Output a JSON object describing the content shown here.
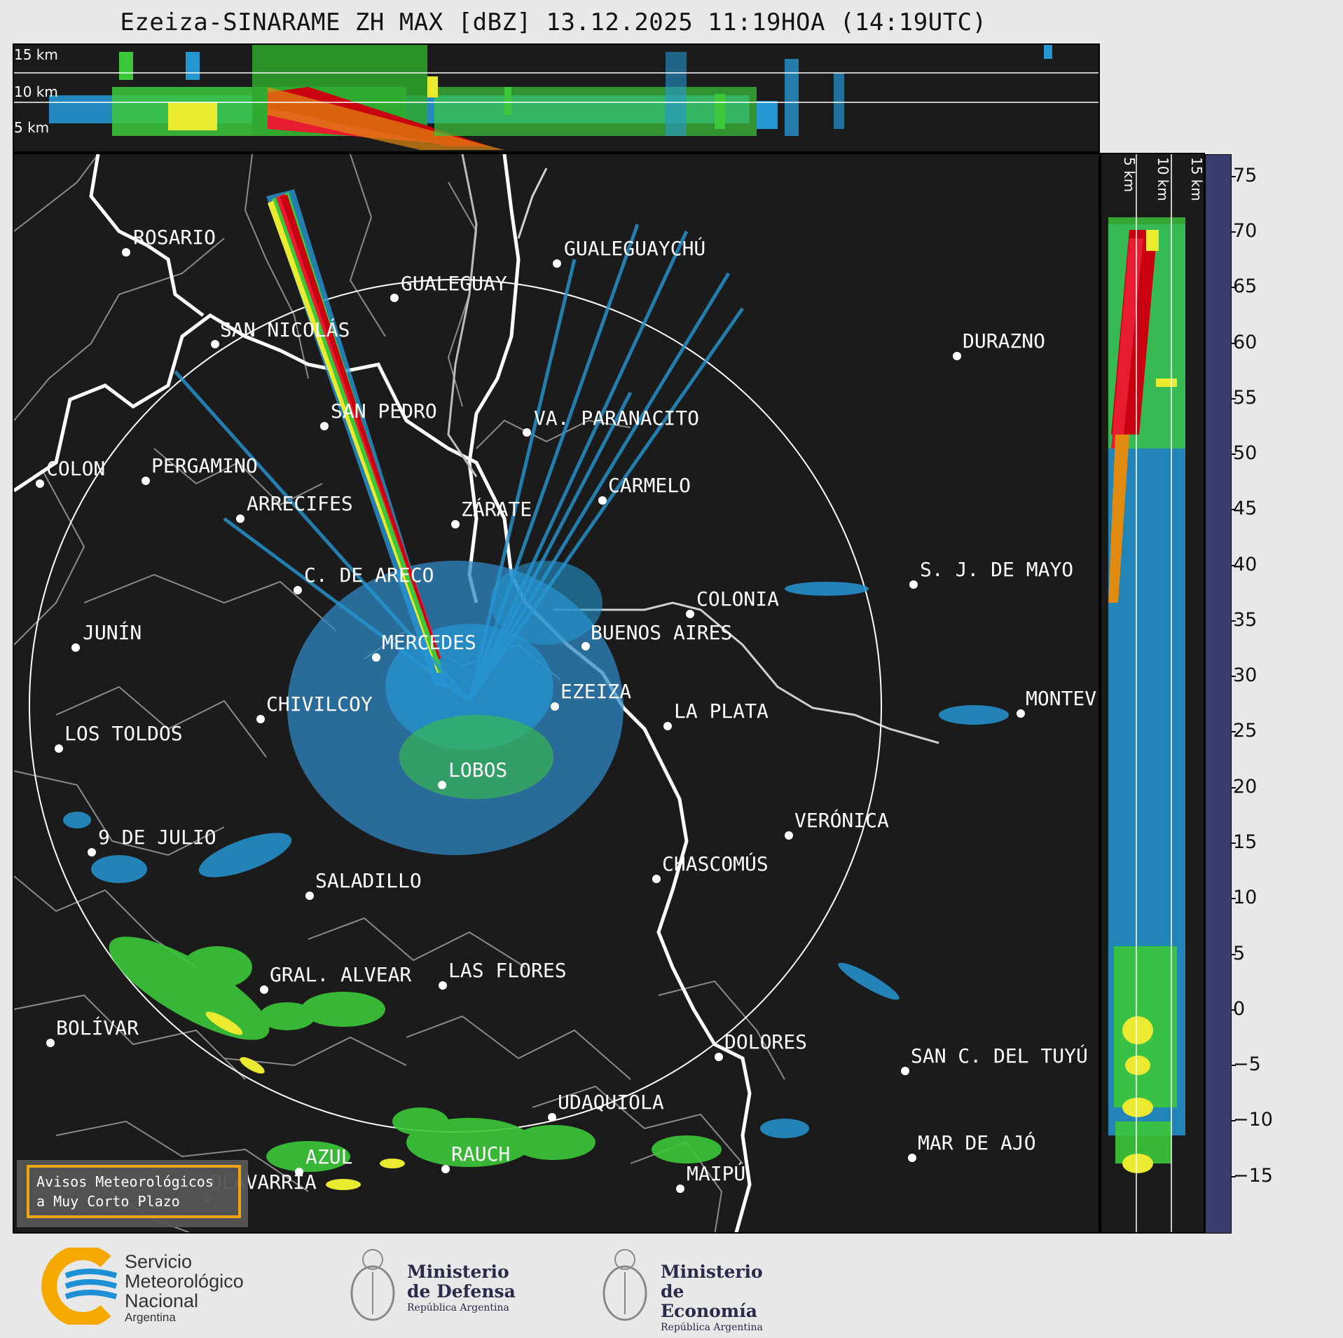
{
  "title": "Ezeiza-SINARAME ZH MAX [dBZ] 13.12.2025 11:19HOA (14:19UTC)",
  "top_panel": {
    "altitude_labels": [
      "15 km",
      "10 km",
      "5 km"
    ]
  },
  "side_panel": {
    "altitude_labels": [
      "5 km",
      "10 km",
      "15 km"
    ]
  },
  "colorbar": {
    "unit": "dBZ",
    "ticks": [
      "75",
      "70",
      "65",
      "60",
      "55",
      "50",
      "45",
      "40",
      "35",
      "30",
      "25",
      "20",
      "15",
      "10",
      "5",
      "0",
      "−5",
      "−10",
      "−15"
    ],
    "range": [
      -20,
      77
    ],
    "stops": [
      {
        "from": -20,
        "color": "#3a3e6e"
      },
      {
        "from": -15,
        "color": "#3d4a80"
      },
      {
        "from": -10,
        "color": "#3f5690"
      },
      {
        "from": -5,
        "color": "#3a6aa8"
      },
      {
        "from": 0,
        "color": "#3478b8"
      },
      {
        "from": 5,
        "color": "#2f88c6"
      },
      {
        "from": 10,
        "color": "#2596d2"
      },
      {
        "from": 15,
        "color": "#22a8dc"
      },
      {
        "from": 18,
        "color": "#4ee64a"
      },
      {
        "from": 21,
        "color": "#3cc83a"
      },
      {
        "from": 24,
        "color": "#2fa82e"
      },
      {
        "from": 27,
        "color": "#236f23"
      },
      {
        "from": 30,
        "color": "#eaea30"
      },
      {
        "from": 33,
        "color": "#d8d03a"
      },
      {
        "from": 37,
        "color": "#c8a82a"
      },
      {
        "from": 40,
        "color": "#e08a10"
      },
      {
        "from": 43,
        "color": "#e81c30"
      },
      {
        "from": 46,
        "color": "#c80010"
      },
      {
        "from": 49,
        "color": "#a00020"
      },
      {
        "from": 50,
        "color": "#c01060"
      },
      {
        "from": 53,
        "color": "#e020d0"
      },
      {
        "from": 56,
        "color": "#a010a0"
      },
      {
        "from": 59,
        "color": "#ffffff"
      },
      {
        "from": 61,
        "color": "#d8f2e8"
      },
      {
        "from": 65,
        "color": "#b0e8d0"
      },
      {
        "from": 70,
        "color": "#8fdcc0"
      }
    ]
  },
  "cities": [
    {
      "name": "ROSARIO"
    },
    {
      "name": "GUALEGUAYCHÚ"
    },
    {
      "name": "GUALEGUAY"
    },
    {
      "name": "SAN NICOLÁS"
    },
    {
      "name": "DURAZNO"
    },
    {
      "name": "SAN PEDRO"
    },
    {
      "name": "VA. PARANACITO"
    },
    {
      "name": "COLON"
    },
    {
      "name": "PERGAMINO"
    },
    {
      "name": "CARMELO"
    },
    {
      "name": "ARRECIFES"
    },
    {
      "name": "ZÁRATE"
    },
    {
      "name": "S. J. DE MAYO"
    },
    {
      "name": "C. DE ARECO"
    },
    {
      "name": "COLONIA"
    },
    {
      "name": "JUNÍN"
    },
    {
      "name": "BUENOS AIRES"
    },
    {
      "name": "MERCEDES"
    },
    {
      "name": "MONTEV"
    },
    {
      "name": "EZEIZA"
    },
    {
      "name": "CHIVILCOY"
    },
    {
      "name": "LA PLATA"
    },
    {
      "name": "LOS TOLDOS"
    },
    {
      "name": "LOBOS"
    },
    {
      "name": "VERÓNICA"
    },
    {
      "name": "9 DE JULIO"
    },
    {
      "name": "CHASCOMÚS"
    },
    {
      "name": "SALADILLO"
    },
    {
      "name": "GRAL. ALVEAR"
    },
    {
      "name": "LAS FLORES"
    },
    {
      "name": "BOLÍVAR"
    },
    {
      "name": "DOLORES"
    },
    {
      "name": "SAN C. DEL TUYÚ"
    },
    {
      "name": "UDAQUIOLA"
    },
    {
      "name": "MAR DE AJÓ"
    },
    {
      "name": "RAUCH"
    },
    {
      "name": "AZUL"
    },
    {
      "name": "MAIPÚ"
    },
    {
      "name": "OLAVARRÍA"
    }
  ],
  "warning_box": {
    "line1": "Avisos Meteorológicos",
    "line2": "a Muy Corto Plazo"
  },
  "footer": {
    "smn": {
      "line1": "Servicio",
      "line2": "Meteorológico",
      "line3": "Nacional",
      "line4": "Argentina"
    },
    "defensa": {
      "line1": "Ministerio",
      "line2": "de Defensa",
      "line3": "República Argentina"
    },
    "economia": {
      "line1": "Ministerio",
      "line2": "de Economía",
      "line3": "República Argentina"
    }
  },
  "colors": {
    "background": "#1b1b1b",
    "coast": "#ffffff",
    "borders": "#8a8a8a",
    "warning_border": "#f2a40d",
    "smn_orange": "#f5a800",
    "smn_blue": "#1e90d6"
  }
}
